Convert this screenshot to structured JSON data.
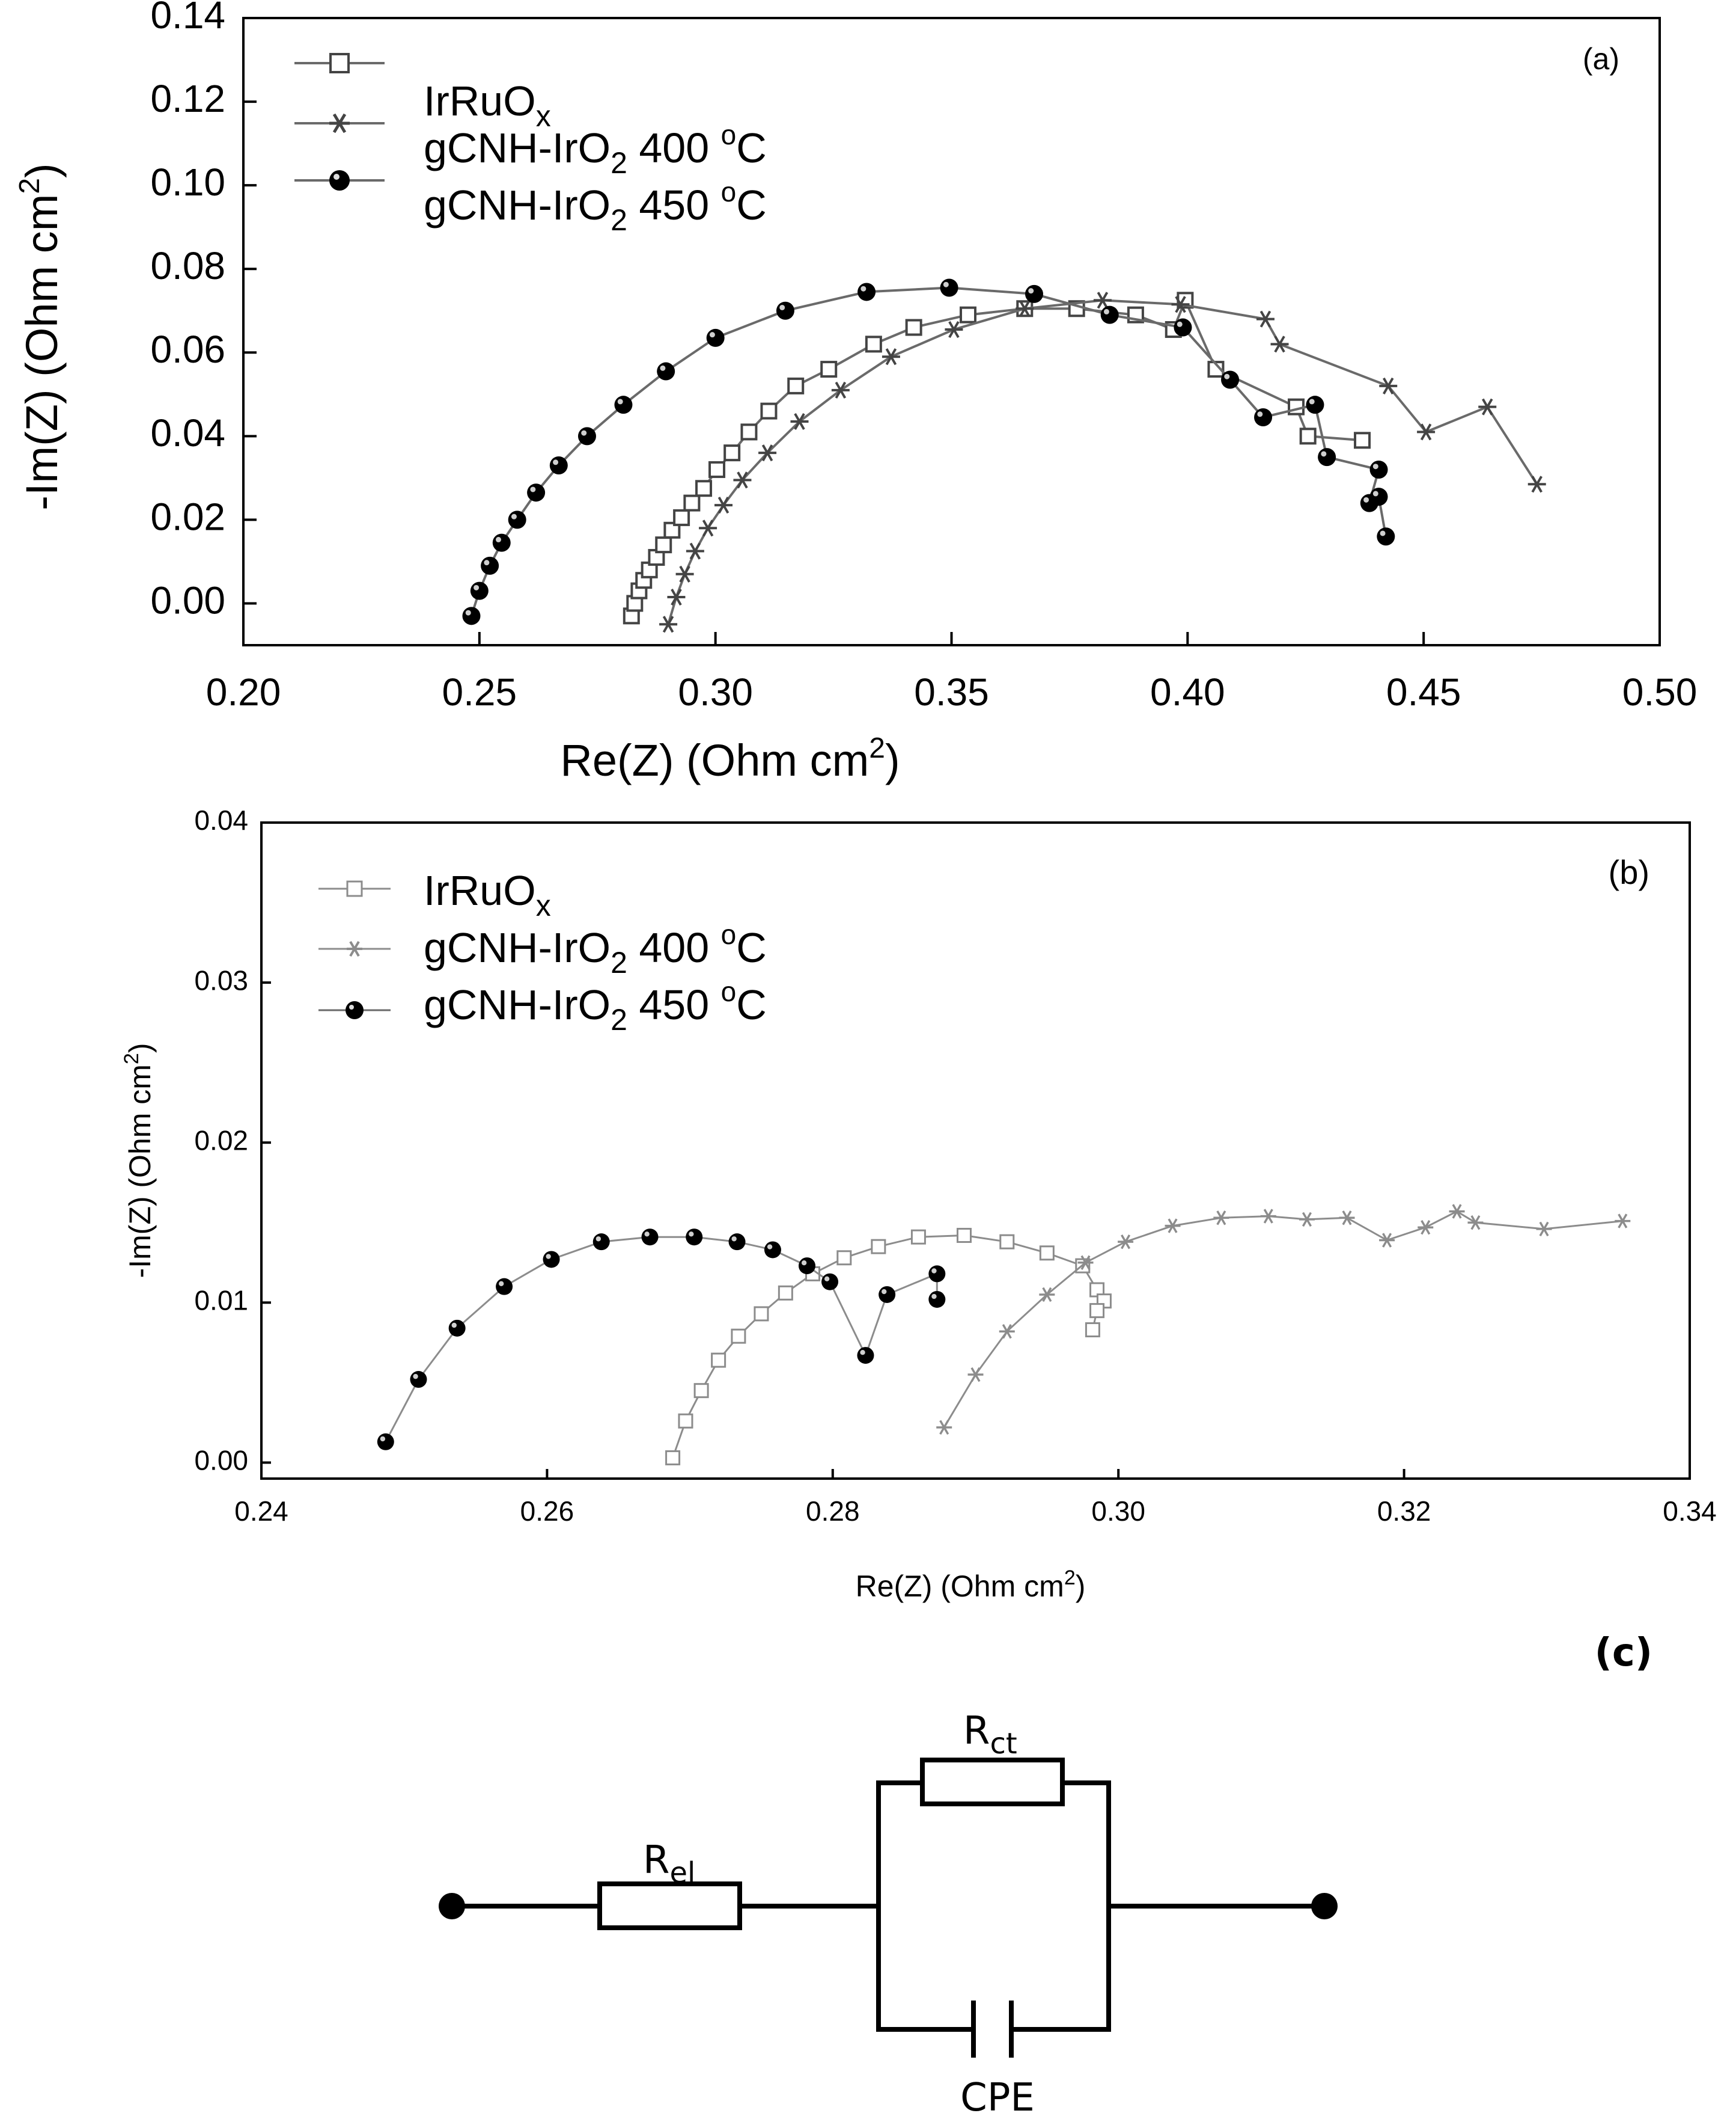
{
  "chart_data": [
    {
      "type": "line",
      "panel_label": "(a)",
      "xlabel": "Re(Z) (Ohm cm²)",
      "ylabel": "-Im(Z) (Ohm cm²)",
      "xlim": [
        0.2,
        0.5
      ],
      "ylim": [
        -0.01,
        0.14
      ],
      "xticks": [
        "0.20",
        "0.25",
        "0.30",
        "0.35",
        "0.40",
        "0.45",
        "0.50"
      ],
      "yticks": [
        "0.00",
        "0.02",
        "0.04",
        "0.06",
        "0.08",
        "0.10",
        "0.12",
        "0.14"
      ],
      "legend_position": "top-left",
      "series": [
        {
          "name": "IrRuOx",
          "marker": "open-square",
          "x": [
            0.2822,
            0.2829,
            0.2838,
            0.2848,
            0.286,
            0.2875,
            0.289,
            0.2908,
            0.2928,
            0.295,
            0.2975,
            0.3003,
            0.3035,
            0.3071,
            0.3113,
            0.317,
            0.324,
            0.3335,
            0.342,
            0.3535,
            0.3655,
            0.3765,
            0.389,
            0.397,
            0.3995,
            0.406,
            0.423,
            0.4255,
            0.437
          ],
          "y": [
            -0.003,
            0.0,
            0.003,
            0.0055,
            0.008,
            0.011,
            0.014,
            0.0175,
            0.0205,
            0.024,
            0.0275,
            0.032,
            0.036,
            0.041,
            0.046,
            0.052,
            0.056,
            0.062,
            0.066,
            0.069,
            0.0705,
            0.0705,
            0.069,
            0.0655,
            0.0725,
            0.056,
            0.047,
            0.04,
            0.039
          ]
        },
        {
          "name": "gCNH-IrO2 400 °C",
          "marker": "asterisk",
          "x": [
            0.29,
            0.2917,
            0.2935,
            0.2957,
            0.2984,
            0.3017,
            0.3057,
            0.311,
            0.3178,
            0.3265,
            0.3372,
            0.3505,
            0.3655,
            0.382,
            0.3985,
            0.4165,
            0.4195,
            0.4425,
            0.4505,
            0.4635,
            0.474
          ],
          "y": [
            -0.005,
            0.0015,
            0.007,
            0.0125,
            0.018,
            0.0235,
            0.0295,
            0.036,
            0.0435,
            0.051,
            0.059,
            0.0655,
            0.0705,
            0.0725,
            0.0715,
            0.068,
            0.062,
            0.052,
            0.041,
            0.047,
            0.0285
          ]
        },
        {
          "name": "gCNH-IrO2 450 °C",
          "marker": "filled-circle",
          "x": [
            0.2483,
            0.25,
            0.2522,
            0.2547,
            0.258,
            0.262,
            0.2668,
            0.2728,
            0.2805,
            0.2895,
            0.3,
            0.3148,
            0.332,
            0.3495,
            0.3675,
            0.3835,
            0.399,
            0.409,
            0.416,
            0.427,
            0.4295,
            0.4405,
            0.4385,
            0.4405,
            0.442
          ],
          "y": [
            -0.003,
            0.003,
            0.009,
            0.0145,
            0.02,
            0.0265,
            0.033,
            0.04,
            0.0475,
            0.0555,
            0.0635,
            0.07,
            0.0745,
            0.0755,
            0.074,
            0.069,
            0.066,
            0.0535,
            0.0445,
            0.0475,
            0.035,
            0.032,
            0.024,
            0.0255,
            0.016
          ]
        }
      ]
    },
    {
      "type": "line",
      "panel_label": "(b)",
      "xlabel": "Re(Z) (Ohm cm²)",
      "ylabel": "-Im(Z) (Ohm cm²)",
      "xlim": [
        0.24,
        0.34
      ],
      "ylim": [
        -0.001,
        0.04
      ],
      "xticks": [
        "0.24",
        "0.26",
        "0.28",
        "0.30",
        "0.32",
        "0.34"
      ],
      "yticks": [
        "0.00",
        "0.01",
        "0.02",
        "0.03",
        "0.04"
      ],
      "legend_position": "top-left",
      "series": [
        {
          "name": "IrRuOx",
          "marker": "open-square",
          "x": [
            0.2688,
            0.2697,
            0.2708,
            0.272,
            0.2734,
            0.275,
            0.2767,
            0.2786,
            0.2808,
            0.2832,
            0.286,
            0.2892,
            0.2922,
            0.295,
            0.2975,
            0.2985,
            0.299,
            0.2985,
            0.2982
          ],
          "y": [
            0.0003,
            0.0026,
            0.0045,
            0.0064,
            0.0079,
            0.0093,
            0.0106,
            0.0118,
            0.0128,
            0.0135,
            0.0141,
            0.0142,
            0.0138,
            0.0131,
            0.0123,
            0.0108,
            0.0101,
            0.0095,
            0.0083
          ]
        },
        {
          "name": "gCNH-IrO2 400 °C",
          "marker": "asterisk",
          "x": [
            0.2878,
            0.29,
            0.2922,
            0.295,
            0.2977,
            0.3005,
            0.3038,
            0.3072,
            0.3105,
            0.3132,
            0.316,
            0.3188,
            0.3215,
            0.3237,
            0.325,
            0.3298,
            0.3353
          ],
          "y": [
            0.0022,
            0.0055,
            0.0082,
            0.0105,
            0.0125,
            0.0138,
            0.0148,
            0.0153,
            0.0154,
            0.0152,
            0.0153,
            0.0139,
            0.0147,
            0.0157,
            0.015,
            0.0146,
            0.0151
          ]
        },
        {
          "name": "gCNH-IrO2 450 °C",
          "marker": "filled-circle",
          "x": [
            0.2487,
            0.251,
            0.2537,
            0.257,
            0.2603,
            0.2638,
            0.2672,
            0.2703,
            0.2733,
            0.2758,
            0.2782,
            0.2798,
            0.2823,
            0.2838,
            0.2873,
            0.2873
          ],
          "y": [
            0.0013,
            0.0052,
            0.0084,
            0.011,
            0.0127,
            0.0138,
            0.0141,
            0.0141,
            0.0138,
            0.0133,
            0.0123,
            0.0113,
            0.0067,
            0.0105,
            0.0118,
            0.0102
          ]
        }
      ]
    }
  ],
  "figure_a": {
    "panel_label": "(a)",
    "x_axis_title": "Re(Z) (Ohm cm",
    "y_axis_title": "-Im(Z) (Ohm cm",
    "sup": "2",
    "close": ")"
  },
  "figure_b": {
    "panel_label": "(b)",
    "x_axis_title": "Re(Z) (Ohm cm",
    "y_axis_title": "-Im(Z) (Ohm cm",
    "sup": "2",
    "close": ")"
  },
  "legend": [
    {
      "base": "IrRuO",
      "sub": "x",
      "mid": "",
      "sup": "",
      "tail": ""
    },
    {
      "base": "gCNH-IrO",
      "sub": "2",
      "mid": " 400 ",
      "sup": "o",
      "tail": "C"
    },
    {
      "base": "gCNH-IrO",
      "sub": "2",
      "mid": " 450 ",
      "sup": "o",
      "tail": "C"
    }
  ],
  "circuit": {
    "panel_label": "(c)",
    "r_el": {
      "base": "R",
      "sub": "el"
    },
    "r_ct": {
      "base": "R",
      "sub": "ct"
    },
    "cpe_label": "CPE"
  },
  "colors": {
    "ink": "#000000",
    "line_gray": "#6a6a6a",
    "light_gray": "#8c8c8c",
    "frame_gray": "#444444"
  }
}
